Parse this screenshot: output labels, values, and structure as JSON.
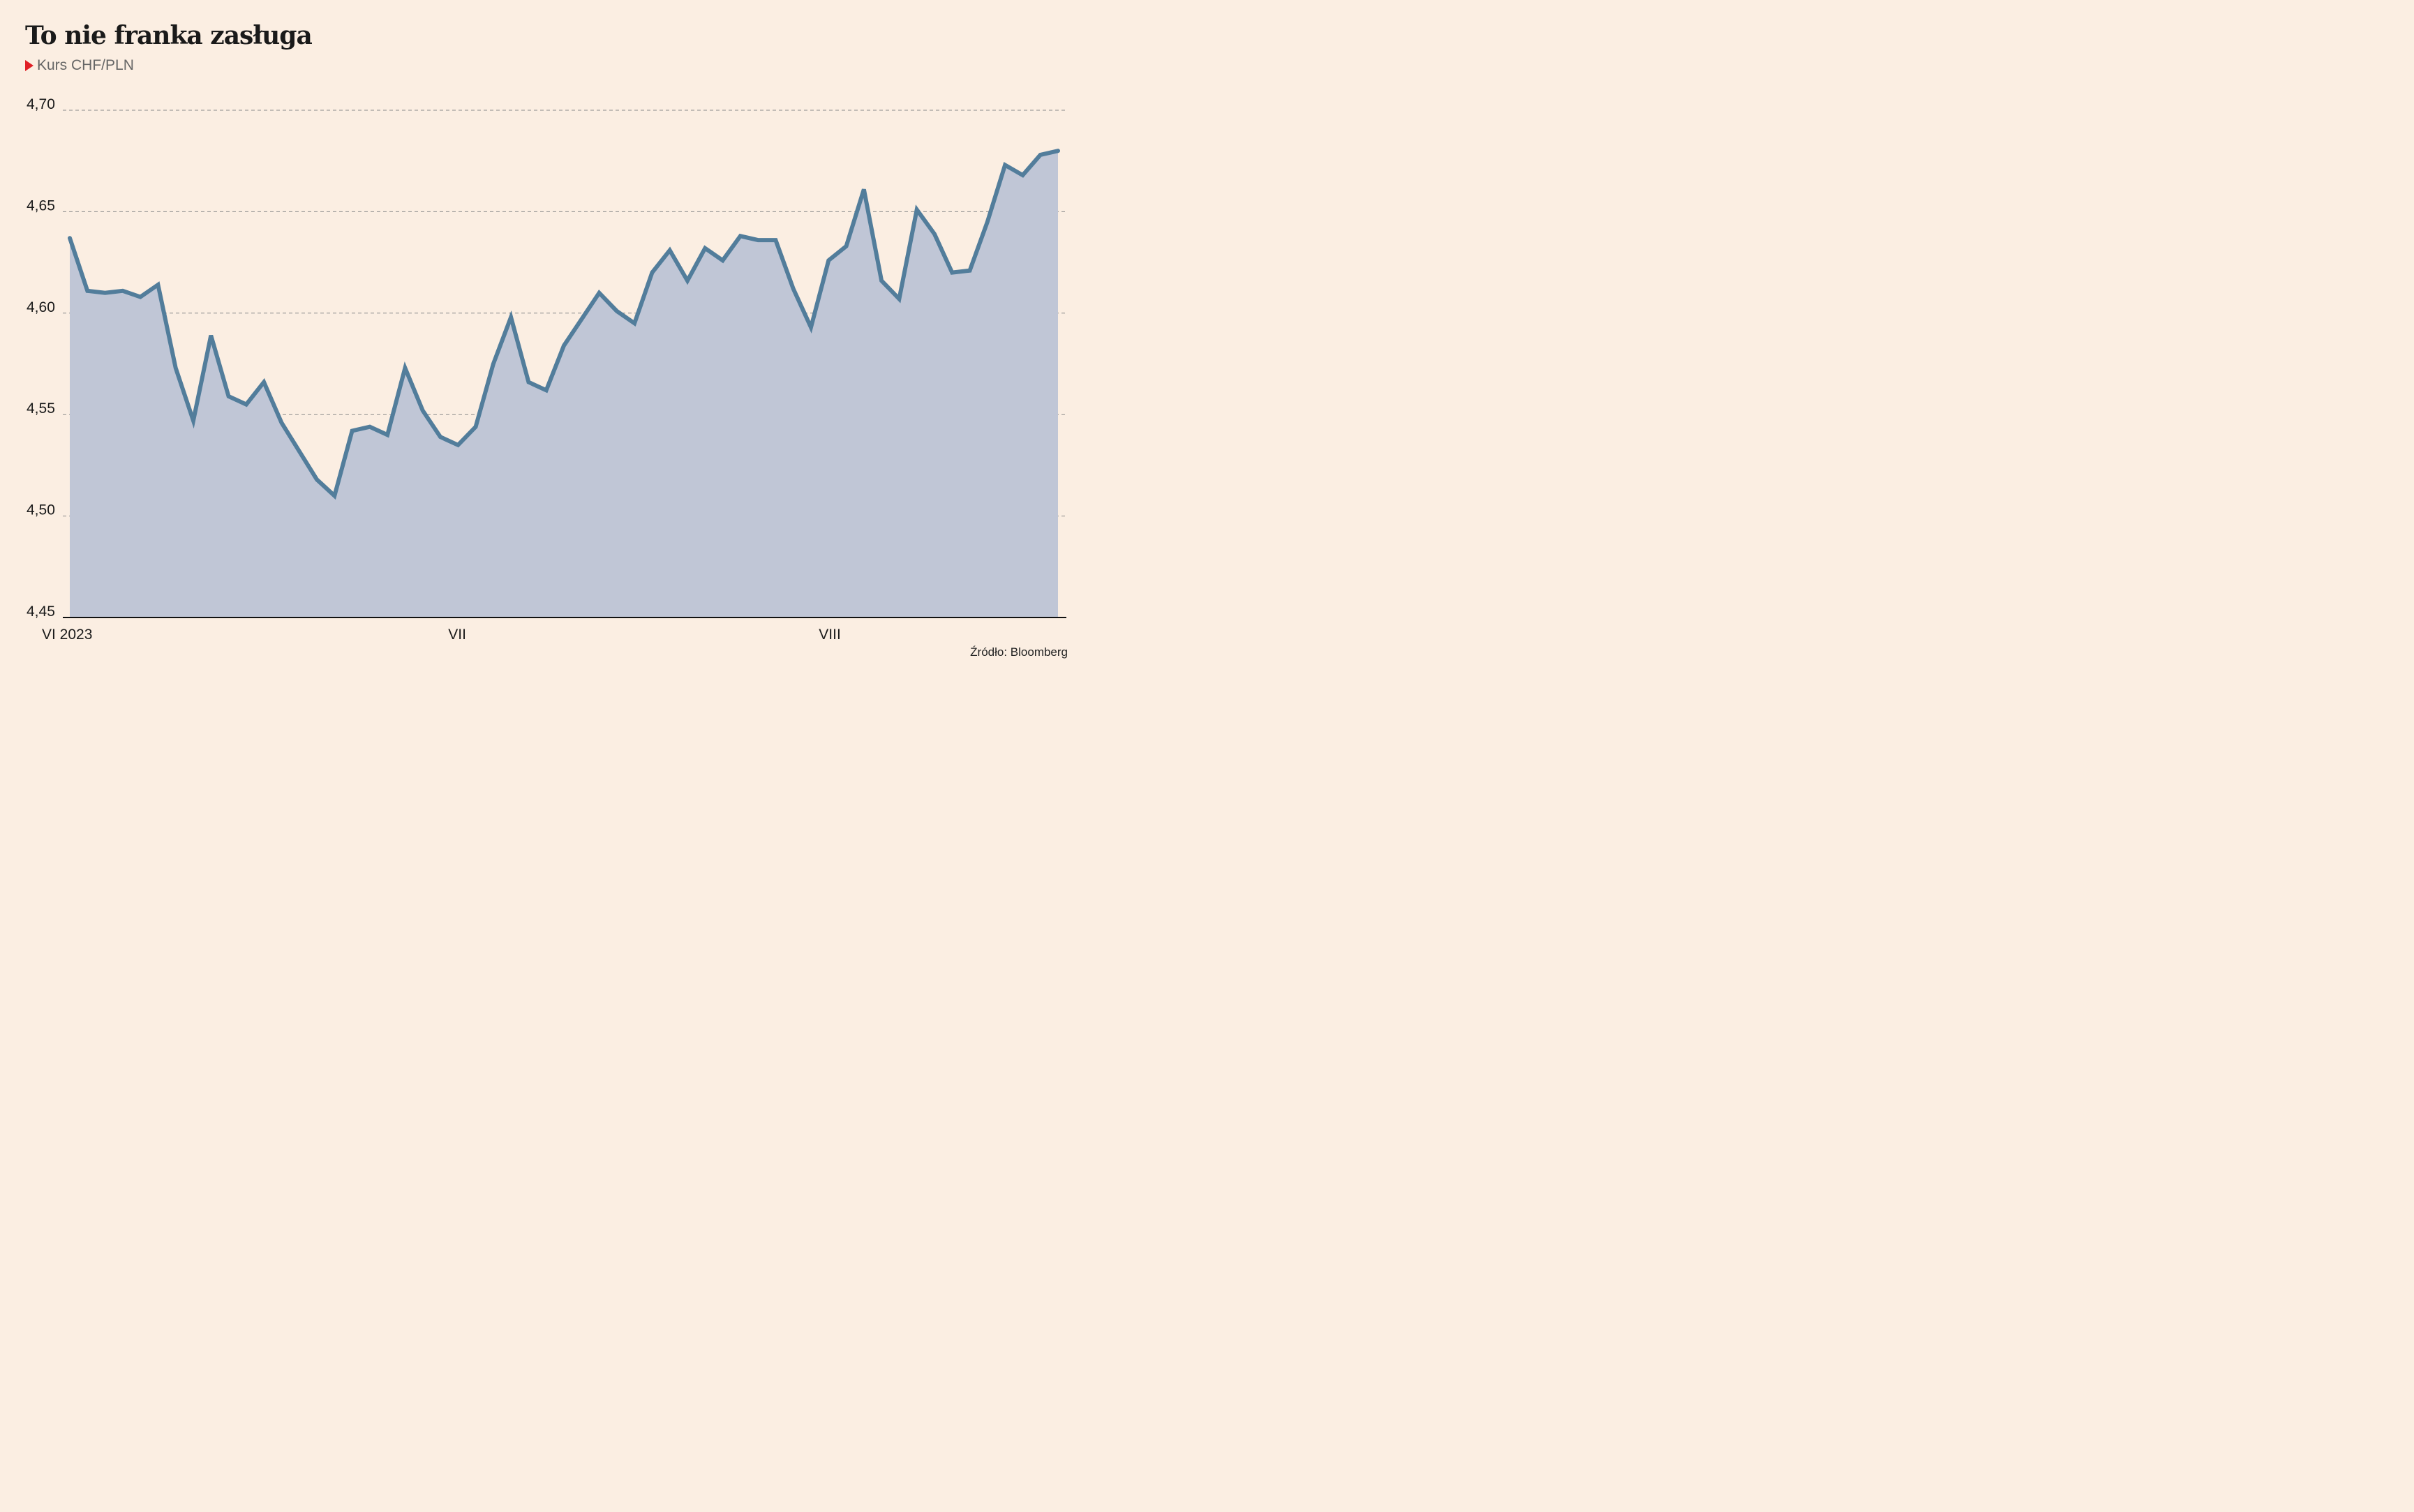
{
  "title": "To nie franka zasługa",
  "subtitle": "Kurs CHF/PLN",
  "source": "Źródło: Bloomberg",
  "colors": {
    "background": "#fbeee2",
    "line": "#527d9b",
    "area": "#c0c6d6",
    "marker": "#e01f26"
  },
  "chart_data": {
    "type": "area",
    "ylim": [
      4.45,
      4.7
    ],
    "yticks": [
      "4,45",
      "4,50",
      "4,55",
      "4,60",
      "4,65",
      "4,70"
    ],
    "ytick_values": [
      4.45,
      4.5,
      4.55,
      4.6,
      4.65,
      4.7
    ],
    "grid": "horizontal dashed",
    "xlim": [
      0,
      57
    ],
    "xticks": [
      {
        "label": "VI 2023",
        "index": 0
      },
      {
        "label": "VII",
        "index": 22
      },
      {
        "label": "VIII",
        "index": 43
      }
    ],
    "x": [
      0,
      1,
      2,
      3,
      4,
      5,
      6,
      7,
      8,
      9,
      10,
      11,
      12,
      13,
      14,
      15,
      16,
      17,
      18,
      19,
      20,
      21,
      22,
      23,
      24,
      25,
      26,
      27,
      28,
      29,
      30,
      31,
      32,
      33,
      34,
      35,
      36,
      37,
      38,
      39,
      40,
      41,
      42,
      43,
      44,
      45,
      46,
      47,
      48,
      49,
      50,
      51,
      52,
      53,
      54,
      55,
      56
    ],
    "values": [
      4.637,
      4.611,
      4.61,
      4.611,
      4.608,
      4.614,
      4.573,
      4.547,
      4.589,
      4.559,
      4.555,
      4.566,
      4.546,
      4.532,
      4.518,
      4.51,
      4.542,
      4.544,
      4.54,
      4.573,
      4.552,
      4.539,
      4.535,
      4.544,
      4.575,
      4.598,
      4.566,
      4.562,
      4.584,
      4.597,
      4.61,
      4.601,
      4.595,
      4.62,
      4.631,
      4.616,
      4.632,
      4.626,
      4.638,
      4.636,
      4.636,
      4.612,
      4.593,
      4.626,
      4.633,
      4.661,
      4.616,
      4.607,
      4.651,
      4.639,
      4.62,
      4.621,
      4.645,
      4.673,
      4.668,
      4.678,
      4.68
    ]
  }
}
